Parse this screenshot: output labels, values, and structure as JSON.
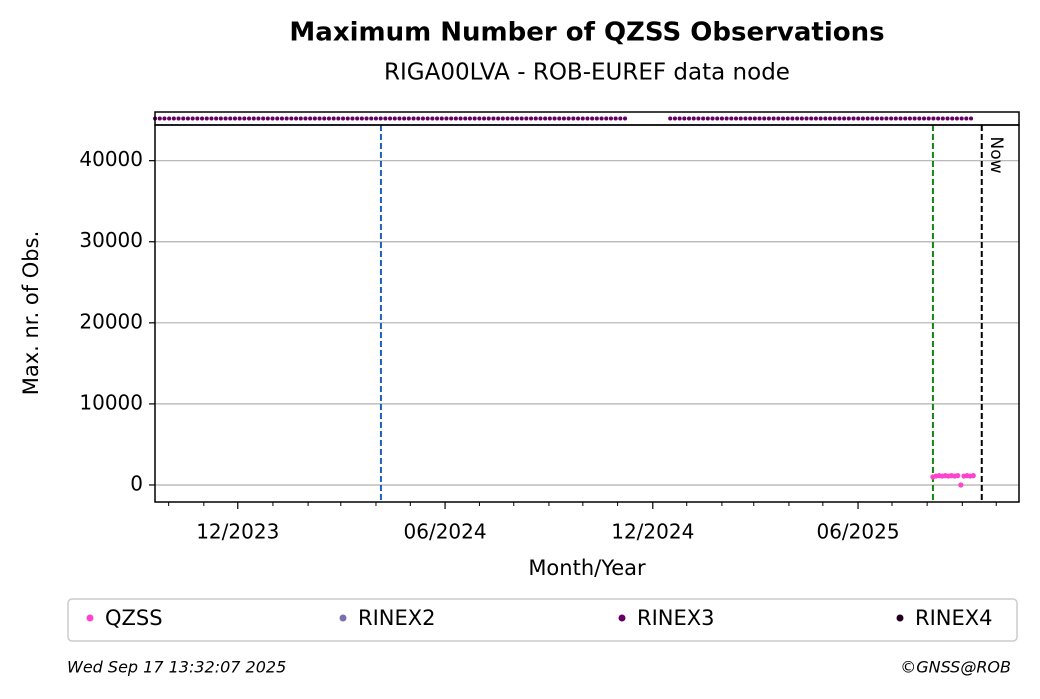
{
  "chart_data": {
    "type": "scatter",
    "title": "Maximum Number of QZSS Observations",
    "subtitle": "RIGA00LVA - ROB-EUREF data node",
    "x_label": "Month/Year",
    "y_label": "Max. nr. of Obs.",
    "xlim": [
      2023.715,
      2025.803
    ],
    "xticks": [
      {
        "value": 2023.915,
        "label": "12/2023"
      },
      {
        "value": 2024.416,
        "label": "06/2024"
      },
      {
        "value": 2024.918,
        "label": "12/2024"
      },
      {
        "value": 2025.414,
        "label": "06/2025"
      }
    ],
    "x_minor_ticks": [
      2023.748,
      2023.833,
      2024.0,
      2024.085,
      2024.164,
      2024.249,
      2024.332,
      2024.499,
      2024.582,
      2024.667,
      2024.749,
      2024.833,
      2025.0,
      2025.085,
      2025.162,
      2025.247,
      2025.329,
      2025.496,
      2025.581,
      2025.666,
      2025.748
    ],
    "ylim": [
      -2100,
      44400
    ],
    "yticks": [
      0,
      10000,
      20000,
      30000,
      40000
    ],
    "grid": true,
    "series": [
      {
        "name": "QZSS",
        "color": "#ff44cc",
        "x": [
          2025.595,
          2025.6025,
          2025.61,
          2025.6175,
          2025.625,
          2025.6325,
          2025.64,
          2025.6475,
          2025.655,
          2025.6625,
          2025.67,
          2025.6775,
          2025.685,
          2025.6925
        ],
        "values": [
          1000,
          1100,
          1150,
          1100,
          1150,
          1100,
          1150,
          1100,
          1150,
          0,
          1100,
          1150,
          1100,
          1150
        ]
      },
      {
        "name": "RINEX2",
        "color": "#7b6fb0",
        "x": [],
        "values": []
      },
      {
        "name": "RINEX3",
        "color": "#660066",
        "x": [],
        "values": [],
        "availability": [
          [
            2023.715,
            2024.851
          ],
          [
            2024.96,
            2025.697
          ]
        ]
      },
      {
        "name": "RINEX4",
        "color": "#220022",
        "x": [],
        "values": []
      }
    ],
    "vlines": [
      {
        "x": 2024.261,
        "color": "#1f5fbf"
      },
      {
        "x": 2025.595,
        "color": "#118811"
      },
      {
        "x": 2025.713,
        "color": "#000000",
        "label": "Now"
      }
    ],
    "footer_left": "Wed Sep 17 13:32:07 2025",
    "footer_right": "©GNSS@ROB"
  }
}
